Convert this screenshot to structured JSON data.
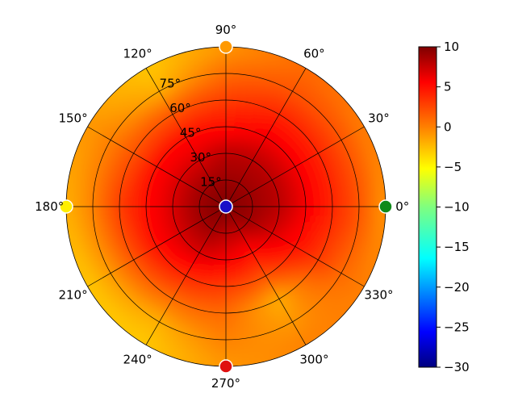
{
  "chart_data": {
    "type": "heatmap",
    "projection": "polar",
    "colormap": "jet-like",
    "angular_ticks": [
      "0°",
      "30°",
      "60°",
      "90°",
      "120°",
      "150°",
      "180°",
      "210°",
      "240°",
      "270°",
      "300°",
      "330°"
    ],
    "radial_ticks": [
      "15°",
      "30°",
      "45°",
      "60°",
      "75°"
    ],
    "radial_range": [
      0,
      90
    ],
    "colorbar": {
      "ticks": [
        "10",
        "5",
        "0",
        "−5",
        "−10",
        "−15",
        "−20",
        "−25",
        "−30"
      ],
      "range": [
        -30,
        10
      ]
    },
    "grid": true,
    "field": {
      "description_values": "approximate value by theta (deg) and radius (deg elevation from center)",
      "theta": [
        0,
        30,
        60,
        90,
        120,
        150,
        180,
        210,
        240,
        270,
        300,
        330
      ],
      "rings": [
        0,
        15,
        30,
        45,
        60,
        75,
        90
      ],
      "values": [
        [
          10,
          9,
          8,
          6,
          4,
          2,
          -1
        ],
        [
          10,
          9,
          8,
          6,
          4,
          2,
          0
        ],
        [
          10,
          9,
          8,
          6,
          4,
          2,
          1
        ],
        [
          10,
          9,
          8,
          5,
          3,
          1,
          -1
        ],
        [
          10,
          9,
          7,
          5,
          2,
          -2,
          -3
        ],
        [
          10,
          9,
          7,
          5,
          2,
          0,
          -1
        ],
        [
          10,
          9,
          7,
          5,
          3,
          0,
          -2
        ],
        [
          10,
          9,
          7,
          5,
          2,
          -1,
          -3
        ],
        [
          10,
          9,
          7,
          4,
          1,
          -2,
          -3
        ],
        [
          10,
          8,
          6,
          3,
          1,
          0,
          -1
        ],
        [
          10,
          8,
          5,
          2,
          -2,
          -1,
          0
        ],
        [
          10,
          9,
          7,
          5,
          3,
          1,
          0
        ]
      ]
    },
    "markers": [
      {
        "theta": 0,
        "r": 90,
        "color": "#0f8a1a"
      },
      {
        "theta": 90,
        "r": 90,
        "color": "#ff9900"
      },
      {
        "theta": 180,
        "r": 90,
        "color": "#ffee00"
      },
      {
        "theta": 270,
        "r": 90,
        "color": "#e01010"
      },
      {
        "theta": 0,
        "r": 0,
        "color": "#1a10c8"
      }
    ]
  }
}
